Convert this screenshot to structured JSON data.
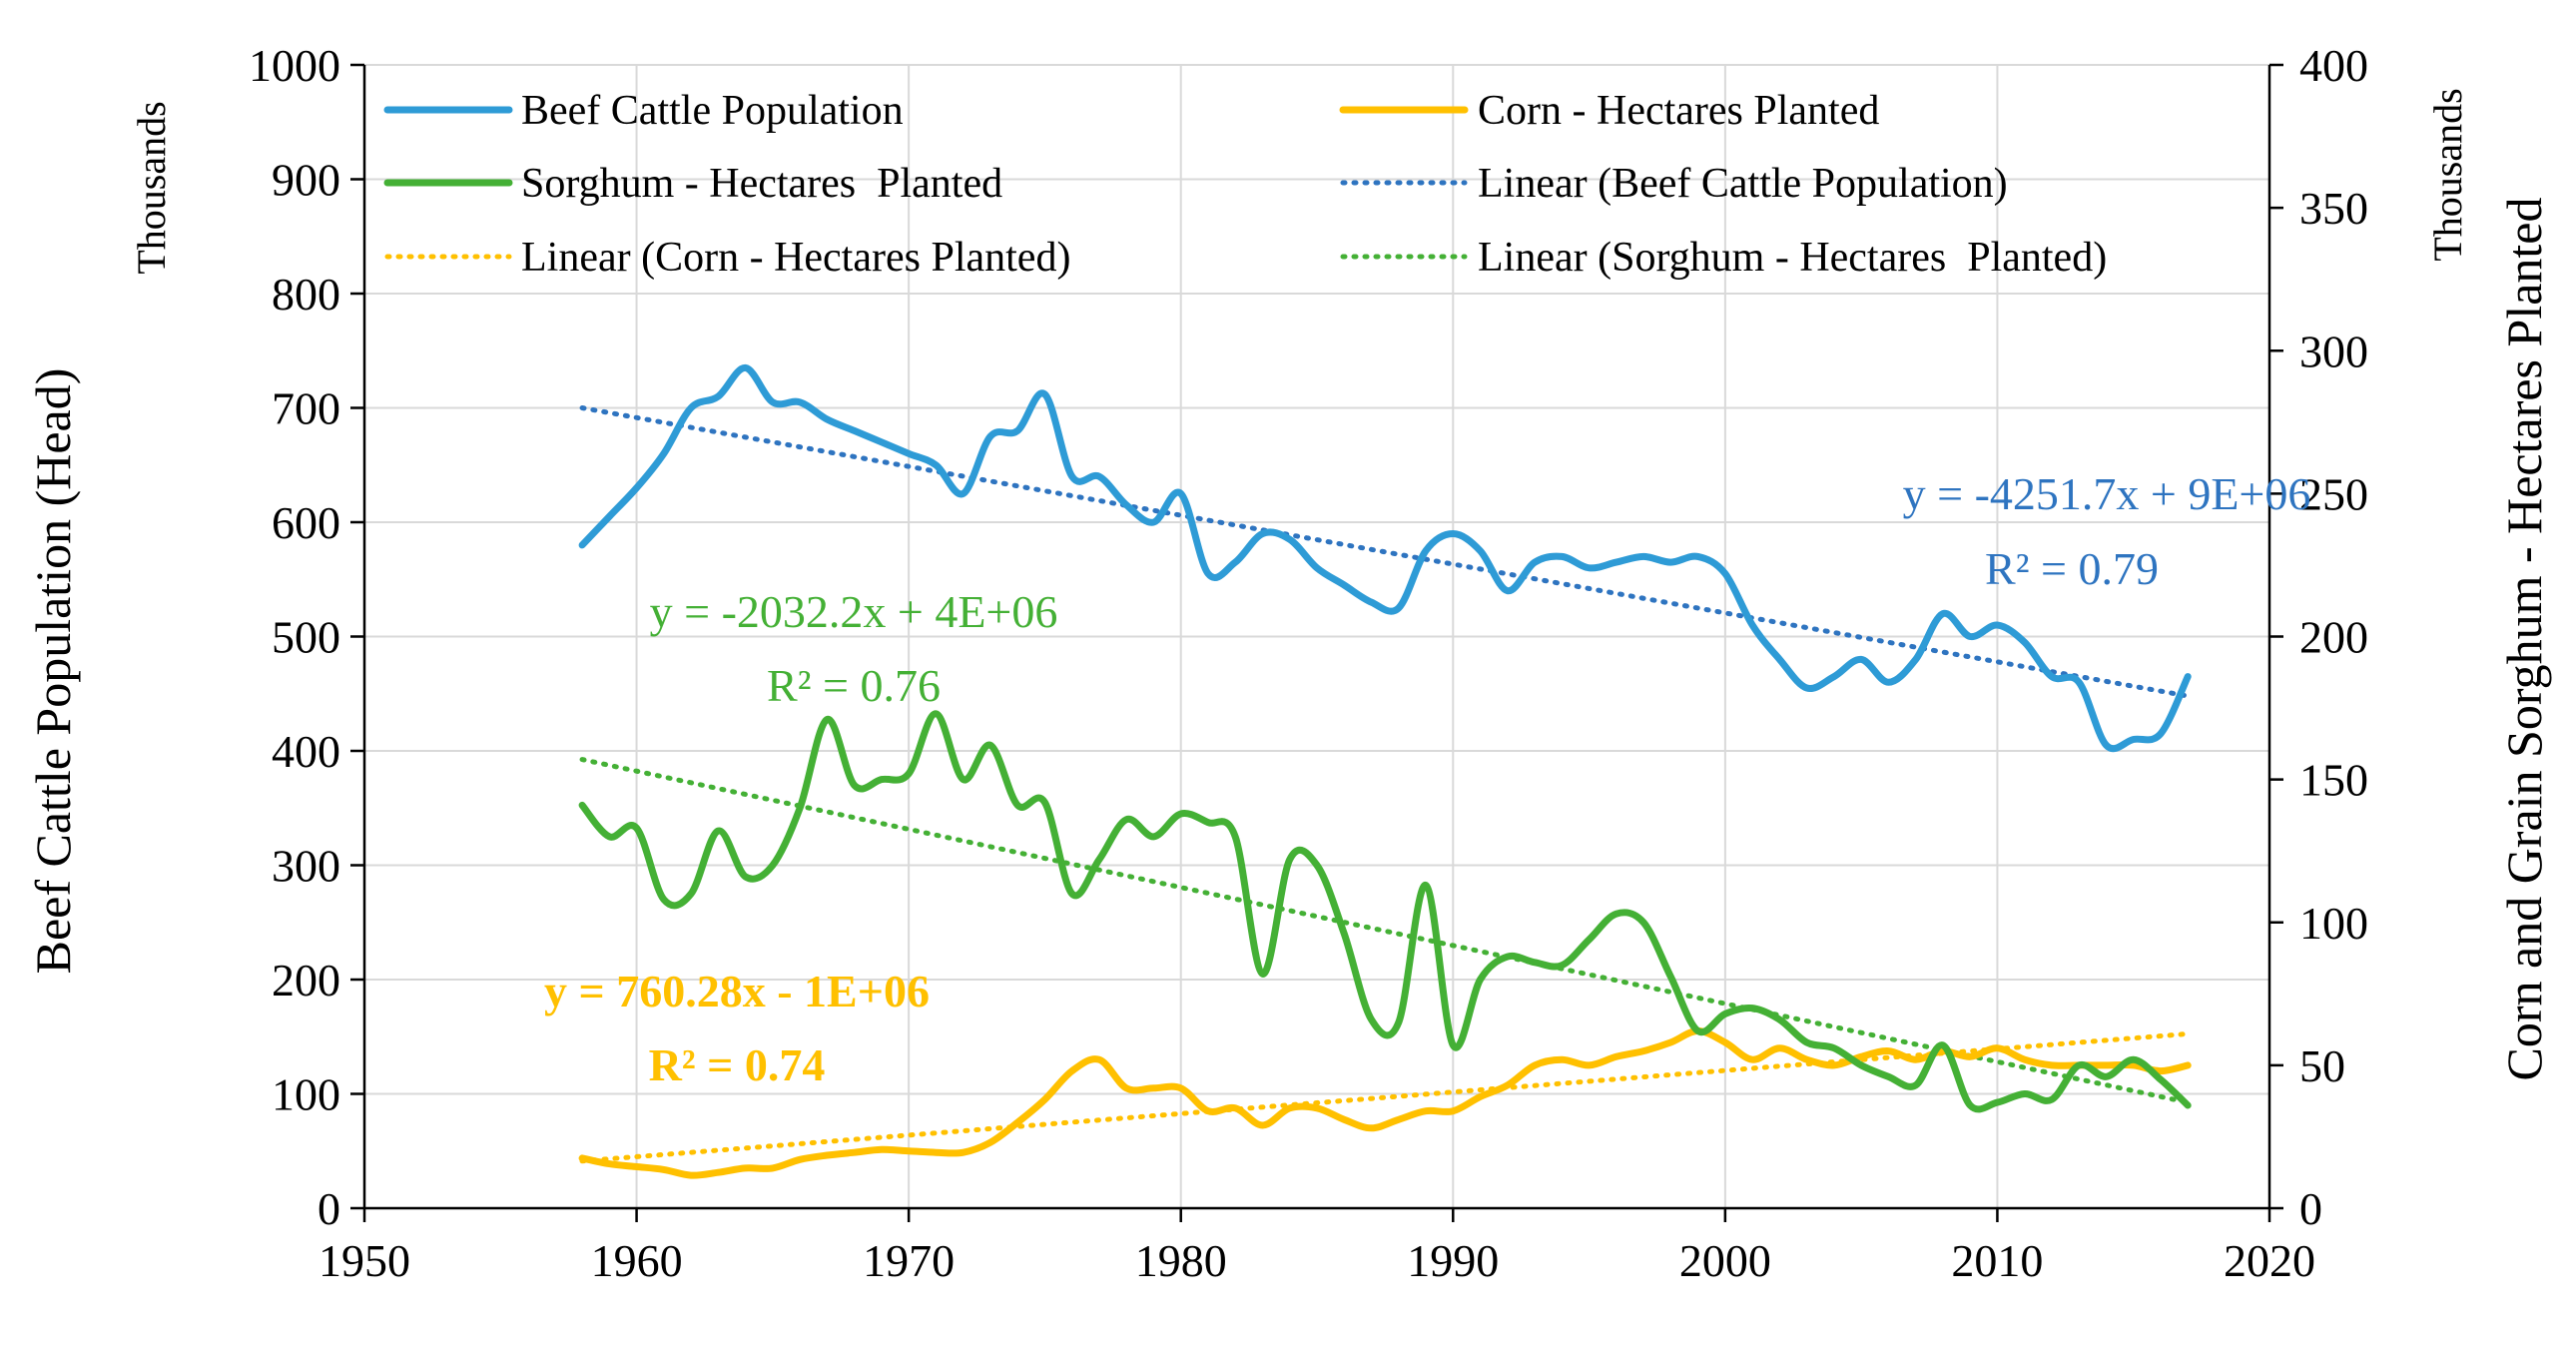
{
  "chart_data": {
    "type": "line",
    "x": [
      1958,
      1959,
      1960,
      1961,
      1962,
      1963,
      1964,
      1965,
      1966,
      1967,
      1968,
      1969,
      1970,
      1971,
      1972,
      1973,
      1974,
      1975,
      1976,
      1977,
      1978,
      1979,
      1980,
      1981,
      1982,
      1983,
      1984,
      1985,
      1986,
      1987,
      1988,
      1989,
      1990,
      1991,
      1992,
      1993,
      1994,
      1995,
      1996,
      1997,
      1998,
      1999,
      2000,
      2001,
      2002,
      2003,
      2004,
      2005,
      2006,
      2007,
      2008,
      2009,
      2010,
      2011,
      2012,
      2013,
      2014,
      2015,
      2016,
      2017
    ],
    "xlim": [
      1950,
      2020
    ],
    "xticks": [
      1950,
      1960,
      1970,
      1980,
      1990,
      2000,
      2010,
      2020
    ],
    "x_tick_labels": [
      "1950",
      "1960",
      "1970",
      "1980",
      "1990",
      "2000",
      "2010",
      "2020"
    ],
    "y_left": {
      "label": "Beef Cattle Population (Head)",
      "units": "Thousands",
      "ylim": [
        0,
        1000
      ],
      "ticks": [
        0,
        100,
        200,
        300,
        400,
        500,
        600,
        700,
        800,
        900,
        1000
      ],
      "tick_labels": [
        "0",
        "100",
        "200",
        "300",
        "400",
        "500",
        "600",
        "700",
        "800",
        "900",
        "1000"
      ]
    },
    "y_right": {
      "label": "Corn and Grain Sorghum - Hectares Planted",
      "units": "Thousands",
      "ylim": [
        0,
        400
      ],
      "ticks": [
        0,
        50,
        100,
        150,
        200,
        250,
        300,
        350,
        400
      ],
      "tick_labels": [
        "0",
        "50",
        "100",
        "150",
        "200",
        "250",
        "300",
        "350",
        "400"
      ]
    },
    "grid": true,
    "legend_position": "top",
    "series": [
      {
        "name": "Beef Cattle Population",
        "axis": "left",
        "color": "#2e9bd6",
        "values": [
          580,
          605,
          630,
          660,
          700,
          710,
          735,
          705,
          705,
          690,
          680,
          670,
          660,
          650,
          625,
          675,
          680,
          712,
          640,
          640,
          615,
          600,
          625,
          555,
          565,
          590,
          585,
          560,
          545,
          530,
          525,
          575,
          590,
          575,
          540,
          565,
          570,
          560,
          565,
          570,
          565,
          570,
          555,
          510,
          480,
          455,
          465,
          480,
          460,
          480,
          520,
          500,
          510,
          495,
          465,
          460,
          405,
          410,
          415,
          465
        ],
        "trend": {
          "name": "Linear (Beef Cattle Population)",
          "slope": -4251.7,
          "intercept_note": "9E+06",
          "start": 700,
          "end": 448
        }
      },
      {
        "name": "Corn - Hectares Planted",
        "axis": "right",
        "color": "#ffc000",
        "values": [
          17.5,
          15.5,
          14.5,
          13.5,
          11.5,
          12.5,
          14,
          14,
          17,
          18.5,
          19.5,
          20.5,
          20,
          19.5,
          19.5,
          23,
          30,
          38,
          48,
          52,
          42,
          42,
          42,
          34,
          35,
          29,
          35,
          35,
          31,
          28,
          31,
          34,
          34,
          39,
          43,
          50,
          52,
          50,
          53,
          55,
          58,
          62,
          58,
          52,
          56,
          52,
          50,
          53,
          55,
          52,
          55,
          53,
          56,
          52,
          50,
          50,
          50,
          50,
          48,
          50
        ],
        "trend": {
          "name": "Linear (Corn - Hectares Planted)",
          "slope": 760.28,
          "intercept_note": "1E+06",
          "start": 16.5,
          "end": 61
        }
      },
      {
        "name": "Sorghum - Hectares  Planted",
        "axis": "right",
        "color": "#44b035",
        "values": [
          141,
          130,
          133,
          108,
          110,
          132,
          116,
          120,
          140,
          171,
          148,
          150,
          152,
          173,
          150,
          162,
          141,
          142,
          110,
          122,
          136,
          130,
          138,
          135,
          130,
          82,
          122,
          120,
          96,
          66,
          65,
          113,
          57,
          80,
          88,
          86,
          85,
          94,
          103,
          100,
          81,
          62,
          68,
          70,
          66,
          58,
          56,
          50,
          46,
          43,
          57,
          36,
          37,
          40,
          38,
          50,
          46,
          52,
          45,
          36
        ],
        "trend": {
          "name": "Linear (Sorghum - Hectares  Planted)",
          "slope": -2032.2,
          "intercept_note": "4E+06",
          "start": 157,
          "end": 37
        }
      }
    ],
    "legend": [
      {
        "label": "Beef Cattle Population",
        "color": "#2e9bd6",
        "style": "solid"
      },
      {
        "label": "Corn - Hectares Planted",
        "color": "#ffc000",
        "style": "solid"
      },
      {
        "label": "Sorghum - Hectares  Planted",
        "color": "#44b035",
        "style": "solid"
      },
      {
        "label": "Linear (Beef Cattle Population)",
        "color": "#2e74c0",
        "style": "dotted"
      },
      {
        "label": "Linear (Corn - Hectares Planted)",
        "color": "#ffc000",
        "style": "dotted"
      },
      {
        "label": "Linear (Sorghum - Hectares  Planted)",
        "color": "#44b035",
        "style": "dotted"
      }
    ],
    "annotations": [
      {
        "series": "beef",
        "equation": "y = -4251.7x + 9E+06",
        "r2": "R² = 0.79",
        "color": "#2e74c0"
      },
      {
        "series": "sorghum",
        "equation": "y = -2032.2x + 4E+06",
        "r2": "R² = 0.76",
        "color": "#44b035"
      },
      {
        "series": "corn",
        "equation": "y = 760.28x - 1E+06",
        "r2": "R² = 0.74",
        "color": "#ffc000"
      }
    ]
  }
}
